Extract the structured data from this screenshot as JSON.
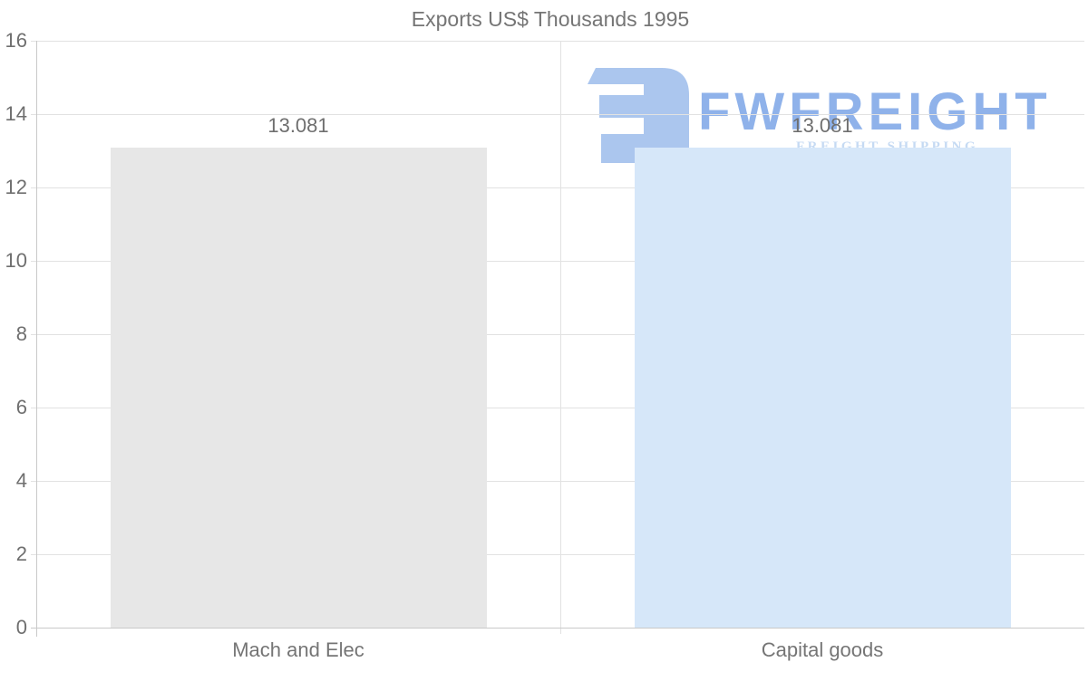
{
  "chart_data": {
    "type": "bar",
    "title": "Exports US$ Thousands 1995",
    "categories": [
      "Mach and Elec",
      "Capital goods"
    ],
    "values": [
      13.081,
      13.081
    ],
    "value_labels": [
      "13.081",
      "13.081"
    ],
    "bar_colors": [
      "#e7e7e7",
      "#d6e7f9"
    ],
    "xlabel": "",
    "ylabel": "",
    "ylim": [
      0,
      16
    ],
    "yticks": [
      0,
      2,
      4,
      6,
      8,
      10,
      12,
      14,
      16
    ],
    "grid": "horizontal",
    "legend_position": "none"
  },
  "watermark": {
    "text": "FWFREIGHT",
    "subtext": "FREIGHT SHIPPING",
    "text_color": "#8fb2ea",
    "mark_color": "#abc6ee",
    "subtext_color": "#c5daf3"
  },
  "palette": {
    "gridline": "#e2e2e2",
    "axis_line": "#c9c9c9",
    "title_text": "#757575",
    "tick_text": "#6f6f6f"
  }
}
